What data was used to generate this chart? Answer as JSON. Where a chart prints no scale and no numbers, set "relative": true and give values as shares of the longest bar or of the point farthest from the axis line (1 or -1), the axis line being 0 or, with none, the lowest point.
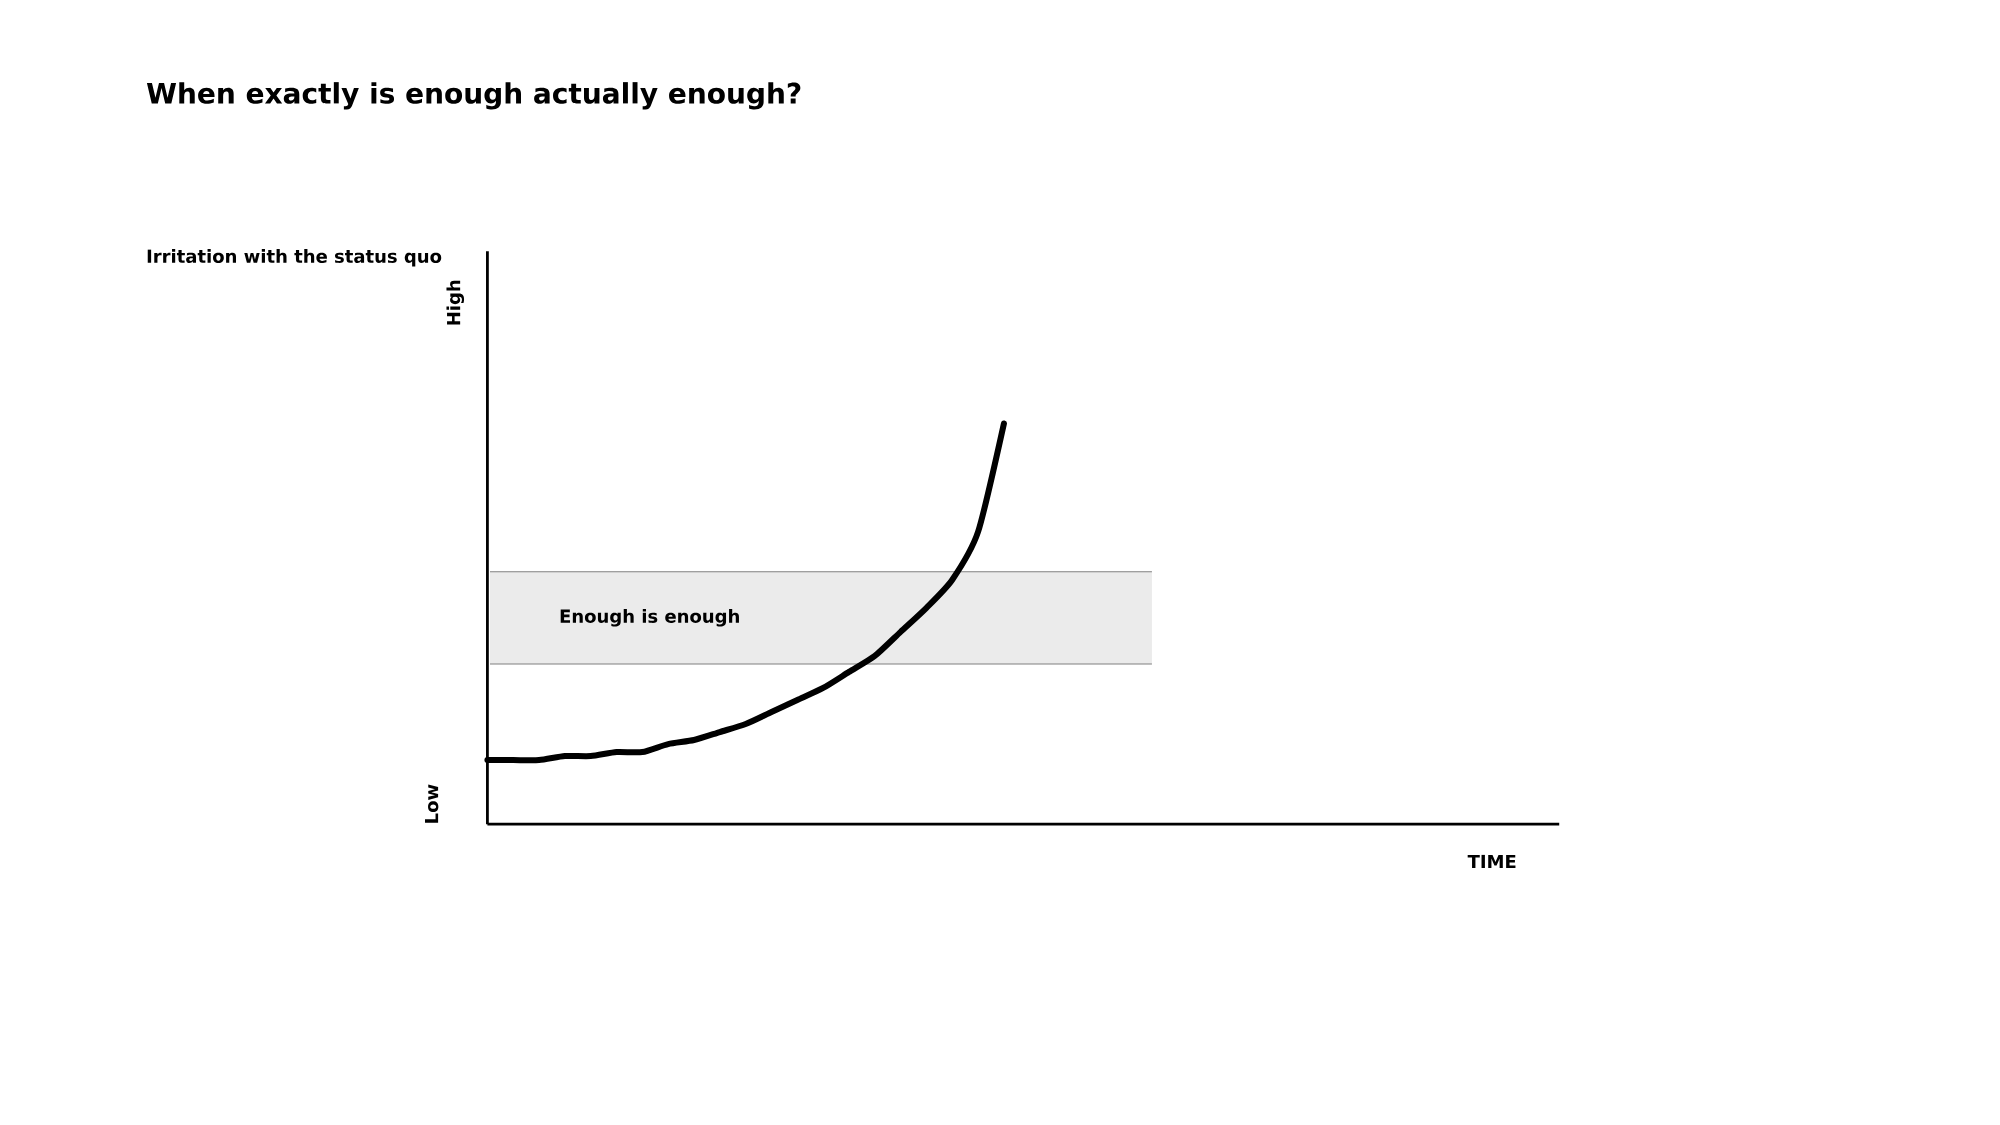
{
  "chart_data": {
    "type": "line",
    "title": "When exactly is enough actually enough?",
    "xlabel": "TIME",
    "relative": true,
    "annotations": [
      "High",
      "Low",
      "Irritation with the status quo"
    ],
    "ref_lines": [
      {
        "axis": "y",
        "value": 0.63,
        "color": "#808080"
      },
      {
        "axis": "y",
        "value": 0.4,
        "color": "#808080"
      }
    ],
    "categories": [
      null,
      null,
      null,
      null,
      null,
      null,
      null,
      null,
      null,
      null,
      null,
      null,
      null,
      null,
      null,
      null,
      null,
      null,
      null,
      null,
      null,
      null,
      null,
      null,
      null,
      null,
      null,
      null,
      null,
      null,
      null,
      null,
      null,
      null,
      null,
      null,
      null,
      null,
      null,
      null,
      null,
      null
    ],
    "series": [
      {
        "color": "#000000",
        "values": [
          0.16,
          0.16,
          0.16,
          0.17,
          0.17,
          0.18,
          0.18,
          0.2,
          0.21,
          0.23,
          0.25,
          0.28,
          0.31,
          0.34,
          0.38,
          0.42,
          0.48,
          0.54,
          0.61,
          0.73,
          1,
          null,
          null,
          null,
          null,
          null,
          null,
          null,
          null,
          null,
          null,
          null,
          null,
          null,
          null,
          null,
          null,
          null,
          null,
          null,
          null,
          null
        ]
      }
    ],
    "bands": [
      {
        "axis": "y",
        "from": 0.4,
        "to": 0.63,
        "label": "Enough is enough",
        "color": "#ebebeb"
      }
    ]
  }
}
